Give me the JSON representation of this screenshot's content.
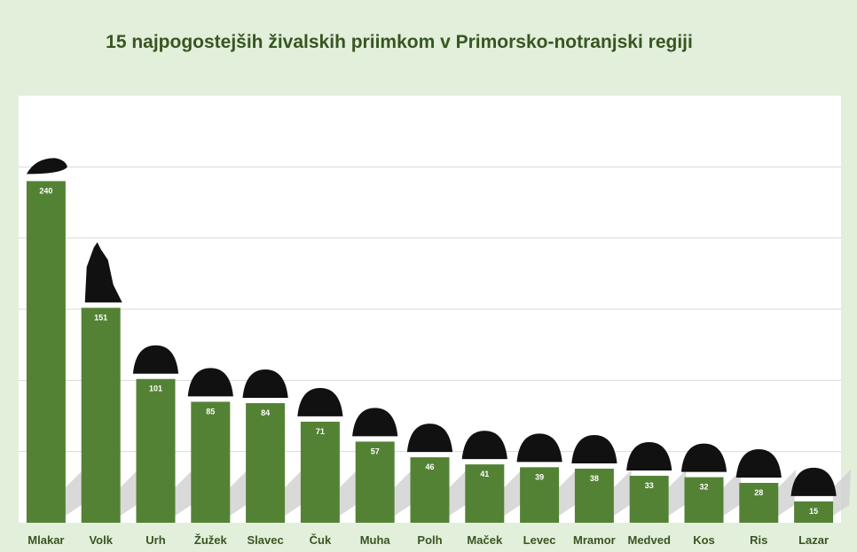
{
  "chart_data": {
    "type": "bar",
    "title": "15 najpogostejših živalskih priimkom v Primorsko-notranjski regiji",
    "xlabel": "",
    "ylabel": "",
    "ylim": [
      0,
      300
    ],
    "grid": true,
    "grid_step": 50,
    "bar_color": "#548235",
    "categories": [
      "Mlakar",
      "Volk",
      "Urh",
      "Žužek",
      "Slavec",
      "Čuk",
      "Muha",
      "Polh",
      "Maček",
      "Levec",
      "Mramor",
      "Medved",
      "Kos",
      "Ris",
      "Lazar"
    ],
    "values": [
      240,
      151,
      101,
      85,
      84,
      71,
      57,
      46,
      41,
      39,
      38,
      33,
      32,
      28,
      15
    ],
    "icons": [
      "mole-icon",
      "wolf-icon",
      "frog-icon",
      "beetle-icon",
      "bird-icon",
      "owl-icon",
      "fly-icon",
      "dormouse-icon",
      "cat-icon",
      "crab-icon",
      "mole-cricket-icon",
      "bear-icon",
      "crow-icon",
      "lynx-icon",
      "slug-icon"
    ]
  }
}
